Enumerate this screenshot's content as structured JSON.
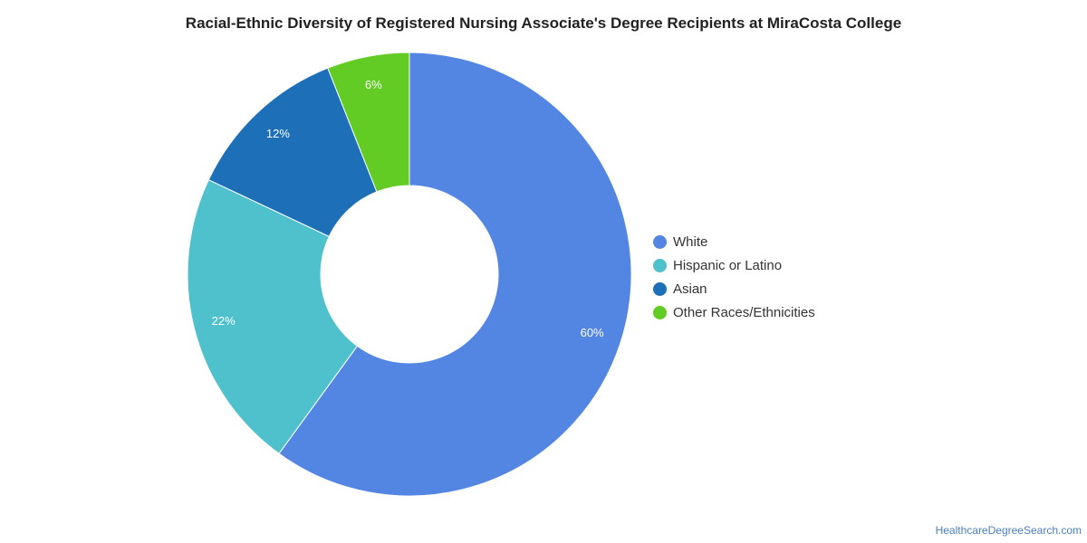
{
  "chart_data": {
    "type": "pie",
    "variant": "donut",
    "title": "Racial-Ethnic Diversity of Registered Nursing Associate's Degree Recipients at MiraCosta College",
    "slices": [
      {
        "label": "White",
        "value": 60,
        "display": "60%",
        "color": "#5385e3"
      },
      {
        "label": "Hispanic or Latino",
        "value": 22,
        "display": "22%",
        "color": "#4fc1cd"
      },
      {
        "label": "Asian",
        "value": 12,
        "display": "12%",
        "color": "#1d70b8"
      },
      {
        "label": "Other Races/Ethnicities",
        "value": 6,
        "display": "6%",
        "color": "#62cc24"
      }
    ],
    "legend_position": "right"
  },
  "source": "HealthcareDegreeSearch.com"
}
